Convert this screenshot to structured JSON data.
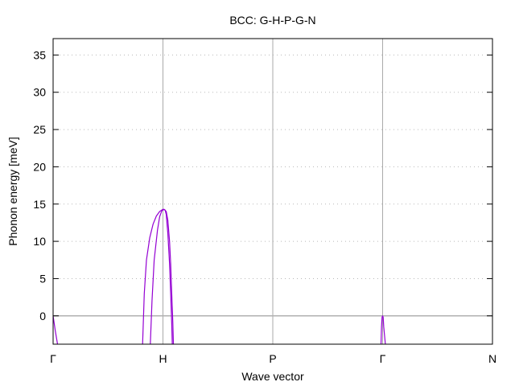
{
  "chart_data": {
    "type": "line",
    "title": "BCC: G-H-P-G-N",
    "xlabel": "Wave vector",
    "ylabel": "Phonon energy [meV]",
    "xlim": [
      0,
      4
    ],
    "ylim": [
      -3.8,
      37.2
    ],
    "yticks": [
      0,
      5,
      10,
      15,
      20,
      25,
      30,
      35
    ],
    "xticks": [
      {
        "x": 0,
        "label": "Γ"
      },
      {
        "x": 1,
        "label": "H"
      },
      {
        "x": 2,
        "label": "P"
      },
      {
        "x": 3,
        "label": "Γ"
      },
      {
        "x": 4,
        "label": "N"
      }
    ],
    "grid": true,
    "zero_line": 0,
    "line_color": "#9400d3",
    "series": [
      {
        "values": [
          [
            0,
            0
          ],
          [
            0.02,
            -2
          ],
          [
            0.04,
            -3.8
          ]
        ]
      },
      {
        "values": [
          [
            0.815,
            -3.8
          ],
          [
            0.83,
            3
          ],
          [
            0.85,
            7.5
          ],
          [
            0.88,
            10.5
          ],
          [
            0.91,
            12.3
          ],
          [
            0.94,
            13.4
          ],
          [
            0.97,
            14.0
          ],
          [
            1.0,
            14.3
          ],
          [
            1.02,
            14.2
          ],
          [
            1.03,
            13.6
          ],
          [
            1.045,
            11
          ],
          [
            1.06,
            7
          ],
          [
            1.07,
            3
          ],
          [
            1.08,
            -1
          ],
          [
            1.085,
            -3.8
          ]
        ]
      },
      {
        "values": [
          [
            0.885,
            -3.8
          ],
          [
            0.9,
            2
          ],
          [
            0.92,
            7.5
          ],
          [
            0.95,
            11.5
          ],
          [
            0.97,
            13.3
          ],
          [
            0.99,
            14.1
          ],
          [
            1.01,
            14.3
          ],
          [
            1.03,
            14.0
          ],
          [
            1.045,
            12.8
          ],
          [
            1.06,
            10
          ],
          [
            1.07,
            7
          ],
          [
            1.08,
            3
          ],
          [
            1.09,
            -1
          ],
          [
            1.095,
            -3.8
          ]
        ]
      },
      {
        "values": [
          [
            2.985,
            -3.8
          ],
          [
            2.99,
            -1.5
          ],
          [
            2.995,
            -0.2
          ],
          [
            3.0,
            0
          ],
          [
            3.005,
            -0.2
          ],
          [
            3.01,
            -1.5
          ],
          [
            3.025,
            -3.8
          ]
        ]
      }
    ]
  }
}
